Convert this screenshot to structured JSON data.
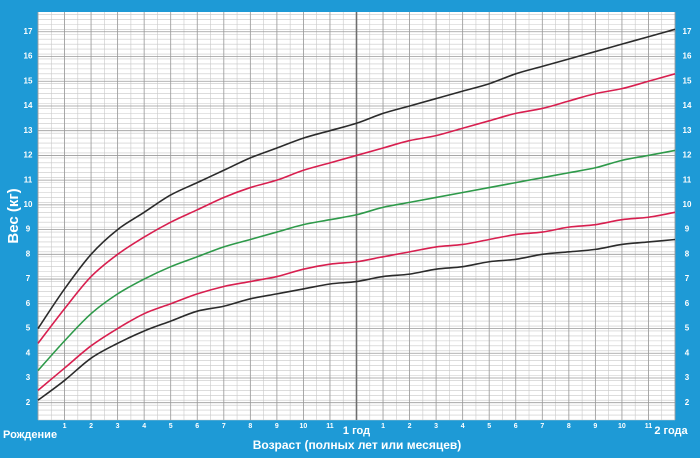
{
  "chart_data": {
    "type": "line",
    "y_label": "Вес (кг)",
    "x_label": "Возраст (полных лет или месяцев)",
    "x": [
      0,
      1,
      2,
      3,
      4,
      5,
      6,
      7,
      8,
      9,
      10,
      11,
      12,
      13,
      14,
      15,
      16,
      17,
      18,
      19,
      20,
      21,
      22,
      23,
      24
    ],
    "xlim": [
      0,
      24
    ],
    "xticks": [
      {
        "value": 0,
        "label": "Рождение"
      },
      1,
      2,
      3,
      4,
      5,
      6,
      7,
      8,
      9,
      10,
      11,
      {
        "value": 12,
        "label": "1 год"
      },
      {
        "value": 13,
        "label": "1"
      },
      {
        "value": 14,
        "label": "2"
      },
      {
        "value": 15,
        "label": "3"
      },
      {
        "value": 16,
        "label": "4"
      },
      {
        "value": 17,
        "label": "5"
      },
      {
        "value": 18,
        "label": "6"
      },
      {
        "value": 19,
        "label": "7"
      },
      {
        "value": 20,
        "label": "8"
      },
      {
        "value": 21,
        "label": "9"
      },
      {
        "value": 22,
        "label": "10"
      },
      {
        "value": 23,
        "label": "11"
      },
      {
        "value": 24,
        "label": "2 года"
      }
    ],
    "ylim": [
      1.3,
      17.8
    ],
    "yticks": [
      2,
      3,
      4,
      5,
      6,
      7,
      8,
      9,
      10,
      11,
      12,
      13,
      14,
      15,
      16,
      17
    ],
    "grid": true,
    "series": [
      {
        "color": "#2b2b2b",
        "values": [
          5.0,
          6.6,
          8.0,
          9.0,
          9.7,
          10.4,
          10.9,
          11.4,
          11.9,
          12.3,
          12.7,
          13.0,
          13.3,
          13.7,
          14.0,
          14.3,
          14.6,
          14.9,
          15.3,
          15.6,
          15.9,
          16.2,
          16.5,
          16.8,
          17.1
        ]
      },
      {
        "color": "#d81f4f",
        "values": [
          4.4,
          5.8,
          7.1,
          8.0,
          8.7,
          9.3,
          9.8,
          10.3,
          10.7,
          11.0,
          11.4,
          11.7,
          12.0,
          12.3,
          12.6,
          12.8,
          13.1,
          13.4,
          13.7,
          13.9,
          14.2,
          14.5,
          14.7,
          15.0,
          15.3
        ]
      },
      {
        "color": "#2e9a4a",
        "values": [
          3.3,
          4.5,
          5.6,
          6.4,
          7.0,
          7.5,
          7.9,
          8.3,
          8.6,
          8.9,
          9.2,
          9.4,
          9.6,
          9.9,
          10.1,
          10.3,
          10.5,
          10.7,
          10.9,
          11.1,
          11.3,
          11.5,
          11.8,
          12.0,
          12.2
        ]
      },
      {
        "color": "#d81f4f",
        "values": [
          2.5,
          3.4,
          4.3,
          5.0,
          5.6,
          6.0,
          6.4,
          6.7,
          6.9,
          7.1,
          7.4,
          7.6,
          7.7,
          7.9,
          8.1,
          8.3,
          8.4,
          8.6,
          8.8,
          8.9,
          9.1,
          9.2,
          9.4,
          9.5,
          9.7
        ]
      },
      {
        "color": "#2b2b2b",
        "values": [
          2.1,
          2.9,
          3.8,
          4.4,
          4.9,
          5.3,
          5.7,
          5.9,
          6.2,
          6.4,
          6.6,
          6.8,
          6.9,
          7.1,
          7.2,
          7.4,
          7.5,
          7.7,
          7.8,
          8.0,
          8.1,
          8.2,
          8.4,
          8.5,
          8.6
        ]
      }
    ]
  }
}
